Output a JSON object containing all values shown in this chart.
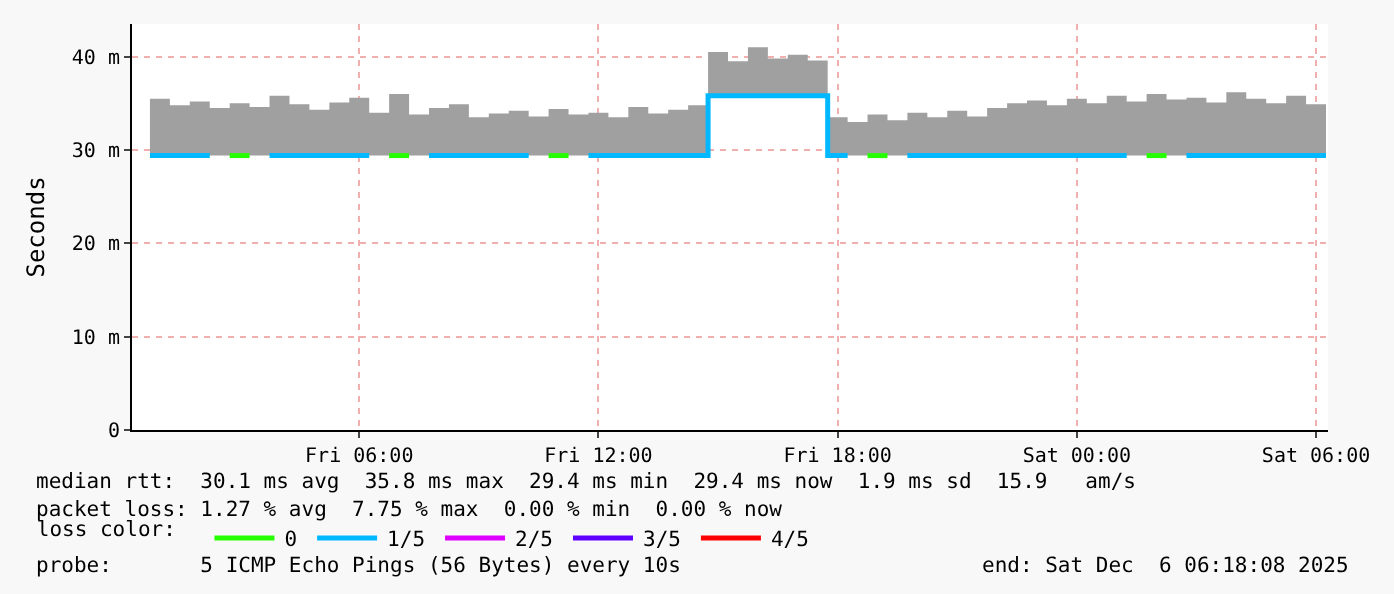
{
  "chart_data": {
    "type": "step",
    "ylabel": "Seconds",
    "legend_title": "loss color:",
    "legend": "bottom",
    "grid": true,
    "marker": "none",
    "line_style": "solid",
    "x": [
      "2025-12-05T00:45",
      "2025-12-05T01:15",
      "2025-12-05T01:45",
      "2025-12-05T02:15",
      "2025-12-05T02:45",
      "2025-12-05T03:15",
      "2025-12-05T03:45",
      "2025-12-05T04:15",
      "2025-12-05T04:45",
      "2025-12-05T05:15",
      "2025-12-05T05:45",
      "2025-12-05T06:15",
      "2025-12-05T06:45",
      "2025-12-05T07:15",
      "2025-12-05T07:45",
      "2025-12-05T08:15",
      "2025-12-05T08:45",
      "2025-12-05T09:15",
      "2025-12-05T09:45",
      "2025-12-05T10:15",
      "2025-12-05T10:45",
      "2025-12-05T11:15",
      "2025-12-05T11:45",
      "2025-12-05T12:15",
      "2025-12-05T12:45",
      "2025-12-05T13:15",
      "2025-12-05T13:45",
      "2025-12-05T14:15",
      "2025-12-05T14:45",
      "2025-12-05T15:15",
      "2025-12-05T15:45",
      "2025-12-05T16:15",
      "2025-12-05T16:45",
      "2025-12-05T17:15",
      "2025-12-05T17:45",
      "2025-12-05T18:15",
      "2025-12-05T18:45",
      "2025-12-05T19:15",
      "2025-12-05T19:45",
      "2025-12-05T20:15",
      "2025-12-05T20:45",
      "2025-12-05T21:15",
      "2025-12-05T21:45",
      "2025-12-05T22:15",
      "2025-12-05T22:45",
      "2025-12-05T23:15",
      "2025-12-05T23:45",
      "2025-12-06T00:15",
      "2025-12-06T00:45",
      "2025-12-06T01:15",
      "2025-12-06T01:45",
      "2025-12-06T02:15",
      "2025-12-06T02:45",
      "2025-12-06T03:15",
      "2025-12-06T03:45",
      "2025-12-06T04:15",
      "2025-12-06T04:45",
      "2025-12-06T05:15",
      "2025-12-06T05:45",
      "2025-12-06T06:15"
    ],
    "series": [
      {
        "name": "0",
        "color": "#26ff00",
        "values": [
          null,
          null,
          null,
          null,
          29.4,
          29.4,
          null,
          null,
          null,
          null,
          null,
          null,
          29.4,
          29.4,
          null,
          null,
          null,
          null,
          null,
          null,
          29.4,
          29.4,
          null,
          null,
          null,
          null,
          null,
          null,
          null,
          null,
          null,
          null,
          null,
          null,
          null,
          null,
          29.4,
          29.4,
          null,
          null,
          null,
          null,
          null,
          null,
          null,
          null,
          null,
          null,
          null,
          null,
          29.4,
          29.4,
          null,
          null,
          null,
          null,
          null,
          null,
          null,
          null
        ]
      },
      {
        "name": "1/5",
        "color": "#00b8ff",
        "values": [
          29.4,
          29.4,
          29.4,
          29.4,
          null,
          null,
          29.4,
          29.4,
          29.4,
          29.4,
          29.4,
          29.4,
          null,
          null,
          29.4,
          29.4,
          29.4,
          29.4,
          29.4,
          29.4,
          null,
          null,
          29.4,
          29.4,
          29.4,
          29.4,
          29.4,
          29.4,
          35.8,
          35.8,
          35.8,
          35.8,
          35.8,
          35.8,
          29.4,
          29.4,
          null,
          null,
          29.4,
          29.4,
          29.4,
          29.4,
          29.4,
          29.4,
          29.4,
          29.4,
          29.4,
          29.4,
          29.4,
          29.4,
          null,
          null,
          29.4,
          29.4,
          29.4,
          29.4,
          29.4,
          29.4,
          29.4,
          29.4
        ],
        "lower": [
          29.4,
          29.4,
          29.4,
          29.4,
          29.4,
          29.4,
          29.4,
          29.4,
          29.4,
          29.4,
          29.4,
          29.4,
          29.4,
          29.4,
          29.4,
          29.4,
          29.4,
          29.4,
          29.4,
          29.4,
          29.4,
          29.4,
          29.4,
          29.4,
          29.4,
          29.4,
          29.4,
          29.4,
          35.8,
          35.8,
          35.8,
          35.8,
          35.8,
          35.8,
          29.4,
          29.4,
          29.4,
          29.4,
          29.4,
          29.4,
          29.4,
          29.4,
          29.4,
          29.4,
          29.4,
          29.4,
          29.4,
          29.4,
          29.4,
          29.4,
          29.4,
          29.4,
          29.4,
          29.4,
          29.4,
          29.4,
          29.4,
          29.4,
          29.4,
          29.4
        ],
        "upper": [
          35.5,
          34.8,
          35.2,
          34.5,
          35,
          34.6,
          35.8,
          34.9,
          34.3,
          35.1,
          35.6,
          34,
          36,
          33.8,
          34.5,
          34.9,
          33.5,
          33.9,
          34.2,
          33.6,
          34.4,
          33.8,
          34,
          33.5,
          34.6,
          33.9,
          34.3,
          34.8,
          40.5,
          39.5,
          41,
          39.8,
          40.2,
          39.6,
          33.5,
          33,
          33.8,
          33.2,
          34,
          33.5,
          34.2,
          33.6,
          34.5,
          35,
          35.3,
          34.8,
          35.5,
          35,
          35.8,
          35.2,
          36,
          35.4,
          35.6,
          35.1,
          36.2,
          35.5,
          35,
          35.8,
          34.9,
          34.5
        ]
      },
      {
        "name": "2/5",
        "color": "#e000ff",
        "values": [
          null,
          null,
          null,
          null,
          null,
          null,
          null,
          null,
          null,
          null,
          null,
          null,
          null,
          null,
          null,
          null,
          null,
          null,
          null,
          null,
          null,
          null,
          null,
          null,
          null,
          null,
          null,
          null,
          null,
          null,
          null,
          null,
          null,
          null,
          null,
          null,
          null,
          null,
          null,
          null,
          null,
          null,
          null,
          null,
          null,
          null,
          null,
          null,
          null,
          null,
          null,
          null,
          null,
          null,
          null,
          null,
          null,
          null,
          null,
          null
        ]
      },
      {
        "name": "3/5",
        "color": "#5e00ff",
        "values": [
          null,
          null,
          null,
          null,
          null,
          null,
          null,
          null,
          null,
          null,
          null,
          null,
          null,
          null,
          null,
          null,
          null,
          null,
          null,
          null,
          null,
          null,
          null,
          null,
          null,
          null,
          null,
          null,
          null,
          null,
          null,
          null,
          null,
          null,
          null,
          null,
          null,
          null,
          null,
          null,
          null,
          null,
          null,
          null,
          null,
          null,
          null,
          null,
          null,
          null,
          null,
          null,
          null,
          null,
          null,
          null,
          null,
          null,
          null,
          null
        ]
      },
      {
        "name": "4/5",
        "color": "#ff0000",
        "values": [
          null,
          null,
          null,
          null,
          null,
          null,
          null,
          null,
          null,
          null,
          null,
          null,
          null,
          null,
          null,
          null,
          null,
          null,
          null,
          null,
          null,
          null,
          null,
          null,
          null,
          null,
          null,
          null,
          null,
          null,
          null,
          null,
          null,
          null,
          null,
          null,
          null,
          null,
          null,
          null,
          null,
          null,
          null,
          null,
          null,
          null,
          null,
          null,
          null,
          null,
          null,
          null,
          null,
          null,
          null,
          null,
          null,
          null,
          null,
          null
        ]
      }
    ],
    "xlim": [
      "2025-12-05T00:18",
      "2025-12-06T06:18"
    ],
    "xticks": [
      {
        "value": "2025-12-05T06:00",
        "label": "Fri 06:00"
      },
      {
        "value": "2025-12-05T12:00",
        "label": "Fri 12:00"
      },
      {
        "value": "2025-12-05T18:00",
        "label": "Fri 18:00"
      },
      {
        "value": "2025-12-06T00:00",
        "label": "Sat 00:00"
      },
      {
        "value": "2025-12-06T06:00",
        "label": "Sat 06:00"
      }
    ],
    "ylim": [
      0,
      43.5
    ],
    "yticks": [
      0,
      {
        "value": 10,
        "label": "10 m"
      },
      {
        "value": 20,
        "label": "20 m"
      },
      {
        "value": 30,
        "label": "30 m"
      },
      {
        "value": 40,
        "label": "40 m"
      }
    ],
    "annotations": [
      "median rtt:  30.1 ms avg  35.8 ms max  29.4 ms min  29.4 ms now  1.9 ms sd  15.9   am/s",
      "packet loss: 1.27 % avg  7.75 % max  0.00 % min  0.00 % now",
      "probe:       5 ICMP Echo Pings (56 Bytes) every 10s",
      "end: Sat Dec  6 06:18:08 2025"
    ]
  }
}
